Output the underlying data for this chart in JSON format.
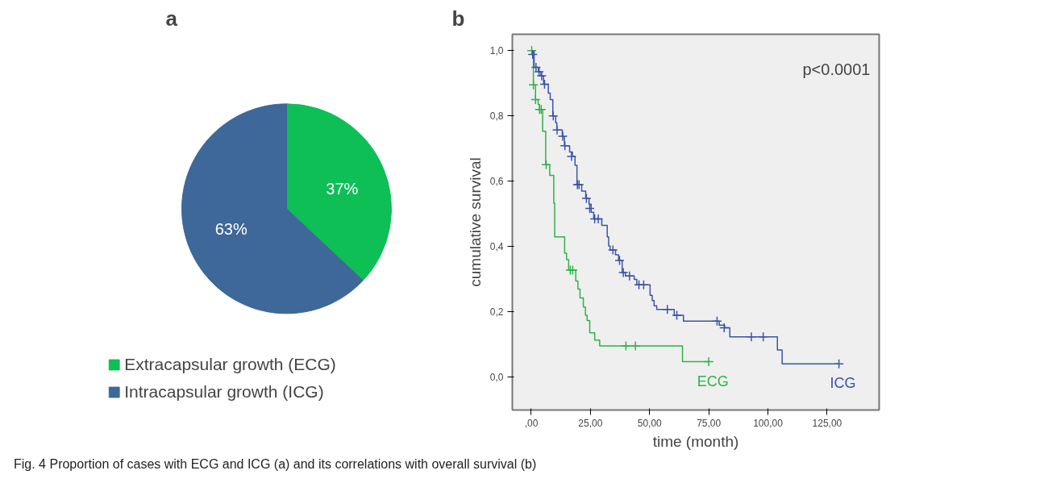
{
  "chart_data": [
    {
      "type": "pie",
      "title": "a",
      "categories": [
        "Extracapsular growth (ECG)",
        "Intracapsular growth (ICG)"
      ],
      "values": [
        37,
        63
      ],
      "colors": [
        "#0dbf55",
        "#3d6899"
      ],
      "value_labels": [
        "37%",
        "63%"
      ],
      "legend": "bottom"
    },
    {
      "type": "step",
      "title": "b",
      "xlabel": "time (month)",
      "ylabel": "cumulative survival",
      "xlim": [
        -8,
        147
      ],
      "ylim": [
        -0.1,
        1.05
      ],
      "xticks": [
        {
          "value": 0,
          "label": ",00"
        },
        {
          "value": 25,
          "label": "25,00"
        },
        {
          "value": 50,
          "label": "50,00"
        },
        {
          "value": 75,
          "label": "75,00"
        },
        {
          "value": 100,
          "label": "100,00"
        },
        {
          "value": 125,
          "label": "125,00"
        }
      ],
      "yticks": [
        {
          "value": 0,
          "label": "0,0"
        },
        {
          "value": 0.2,
          "label": "0,2"
        },
        {
          "value": 0.4,
          "label": "0,4"
        },
        {
          "value": 0.6,
          "label": "0,6"
        },
        {
          "value": 0.8,
          "label": "0,8"
        },
        {
          "value": 1.0,
          "label": "1,0"
        }
      ],
      "grid": false,
      "legend": false,
      "annotations": [
        "p<0.0001",
        "Fig. 4 Proportion of cases with ECG and ICG (a) and its correlations with overall survival (b)"
      ],
      "series": [
        {
          "name": "ECG",
          "color": "#2fb24a",
          "type": "step",
          "x": [
            0,
            0.9,
            1.8,
            2.9,
            3.5,
            4.8,
            6.1,
            7.8,
            9.5,
            9.9,
            14.1,
            14.9,
            15.8,
            18.8,
            19.7,
            20.6,
            22,
            22.9,
            23.6,
            24.7,
            26.8,
            28.9,
            63.9,
            75
          ],
          "values": [
            1.0,
            0.895,
            0.85,
            0.835,
            0.82,
            0.753,
            0.651,
            0.618,
            0.533,
            0.43,
            0.38,
            0.36,
            0.328,
            0.295,
            0.27,
            0.243,
            0.215,
            0.19,
            0.174,
            0.136,
            0.114,
            0.096,
            0.048,
            0.048
          ]
        },
        {
          "name": "ICG",
          "color": "#3a55a5",
          "type": "step",
          "x": [
            0,
            1.2,
            3.0,
            4.1,
            5.2,
            7.2,
            8.0,
            9.1,
            10.3,
            10.8,
            13.1,
            14.0,
            16.2,
            17.4,
            18.5,
            19.3,
            21.3,
            23.0,
            24.4,
            25.3,
            26.4,
            29.8,
            32.1,
            32.7,
            33.3,
            35.6,
            36.9,
            38.4,
            39.8,
            43.5,
            44.6,
            50.2,
            51.1,
            51.9,
            53.0,
            60.4,
            64.3,
            79.4,
            81.7,
            83.9,
            104,
            106,
            130
          ],
          "values": [
            1.0,
            0.949,
            0.935,
            0.923,
            0.897,
            0.87,
            0.85,
            0.8,
            0.779,
            0.757,
            0.738,
            0.709,
            0.69,
            0.676,
            0.649,
            0.59,
            0.57,
            0.548,
            0.53,
            0.505,
            0.485,
            0.465,
            0.43,
            0.402,
            0.39,
            0.375,
            0.358,
            0.321,
            0.31,
            0.3,
            0.283,
            0.251,
            0.235,
            0.219,
            0.208,
            0.19,
            0.172,
            0.16,
            0.152,
            0.124,
            0.084,
            0.041,
            0.041
          ]
        },
        {
          "color": "#2fb24a",
          "type": "scatter",
          "marker": "cross",
          "x": [
            0.2,
            0.9,
            1.8,
            3.5,
            4.2,
            6.3,
            16.5,
            17.5,
            40,
            44,
            75
          ],
          "values": [
            1.0,
            0.895,
            0.85,
            0.82,
            0.82,
            0.651,
            0.328,
            0.328,
            0.096,
            0.096,
            0.048
          ]
        },
        {
          "color": "#3a55a5",
          "type": "scatter",
          "marker": "cross",
          "x": [
            0.6,
            2.0,
            3.3,
            4.4,
            5.6,
            9.3,
            10.9,
            13.3,
            14.2,
            17.0,
            19.5,
            20.2,
            23.3,
            24.7,
            26.8,
            28.3,
            34.5,
            37.3,
            38.9,
            41.5,
            45.5,
            47.5,
            57.5,
            61.5,
            78.5,
            81.5,
            93,
            98,
            130
          ],
          "values": [
            0.988,
            0.949,
            0.935,
            0.923,
            0.897,
            0.8,
            0.757,
            0.738,
            0.709,
            0.676,
            0.59,
            0.59,
            0.548,
            0.517,
            0.485,
            0.485,
            0.39,
            0.358,
            0.321,
            0.31,
            0.283,
            0.283,
            0.208,
            0.19,
            0.172,
            0.152,
            0.124,
            0.124,
            0.041
          ]
        }
      ]
    }
  ]
}
